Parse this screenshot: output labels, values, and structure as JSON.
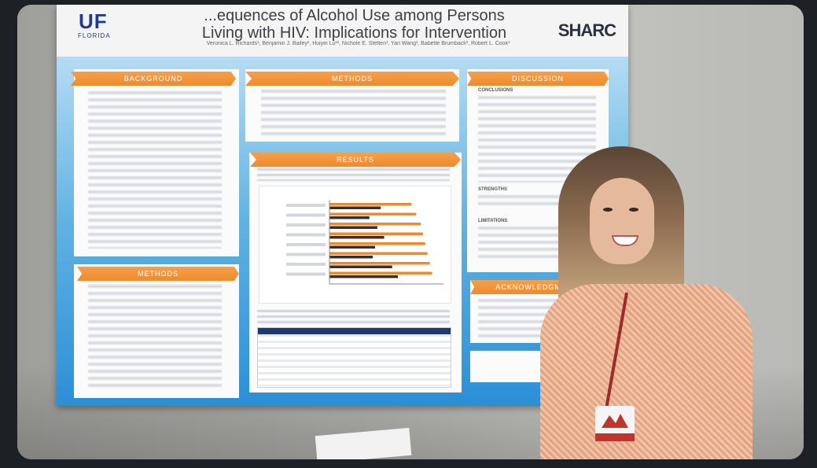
{
  "poster": {
    "logo_left": "UF",
    "logo_left_sub": "FLORIDA",
    "title_line1": "...equences of Alcohol Use among Persons",
    "title_line2": "Living with HIV: Implications for Intervention",
    "authors": "Veronica L. Richards¹, Benjamin J. Bailey², Huiyin Lu¹², Nichole E. Stetten¹, Yan Wang¹, Babette Brumback³, Robert L. Cook¹",
    "logo_right": "SHARC",
    "sections": {
      "background": "BACKGROUND",
      "methods_top": "METHODS",
      "discussion": "DISCUSSION",
      "results": "RESULTS",
      "methods_bottom": "METHODS",
      "acknowledgements": "ACKNOWLEDGMENTS"
    },
    "discussion_subheads": [
      "CONCLUSIONS",
      "STRENGTHS",
      "LIMITATIONS"
    ]
  },
  "chart_data": {
    "type": "bar",
    "categories": [
      "",
      "",
      "",
      "",
      "",
      "",
      "",
      ""
    ],
    "series": [
      {
        "values": [
          0.72,
          0.76,
          0.8,
          0.82,
          0.84,
          0.86,
          0.88,
          0.9
        ]
      },
      {
        "values": [
          0.45,
          0.35,
          0.42,
          0.48,
          0.4,
          0.38,
          0.55,
          0.6
        ]
      }
    ],
    "colors": [
      "#ef8a2a",
      "#3a2f2c"
    ]
  }
}
